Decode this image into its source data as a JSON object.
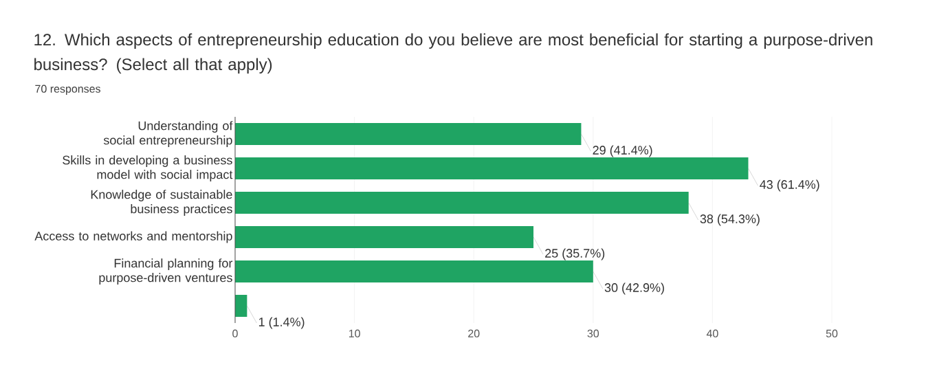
{
  "chart_data": {
    "type": "bar",
    "orientation": "horizontal",
    "title": "12. Which aspects of entrepreneurship education do you believe are most beneficial for starting a purpose-driven business? (Select all that apply)",
    "subtitle": "70 responses",
    "categories": [
      "Understanding of social entrepreneurship",
      "Skills in developing a business model with social impact",
      "Knowledge of sustainable business practices",
      "Access to networks and mentorship",
      "Financial planning for purpose-driven ventures",
      null
    ],
    "values": [
      29,
      43,
      38,
      25,
      30,
      1
    ],
    "value_labels": [
      "29 (41.4%)",
      "43 (61.4%)",
      "38 (54.3%)",
      "25 (35.7%)",
      "30 (42.9%)",
      "1 (1.4%)"
    ],
    "color": "#1fa463",
    "xlim": [
      0,
      50
    ],
    "xticks": [
      0,
      10,
      20,
      30,
      40,
      50
    ],
    "grid": "x"
  }
}
